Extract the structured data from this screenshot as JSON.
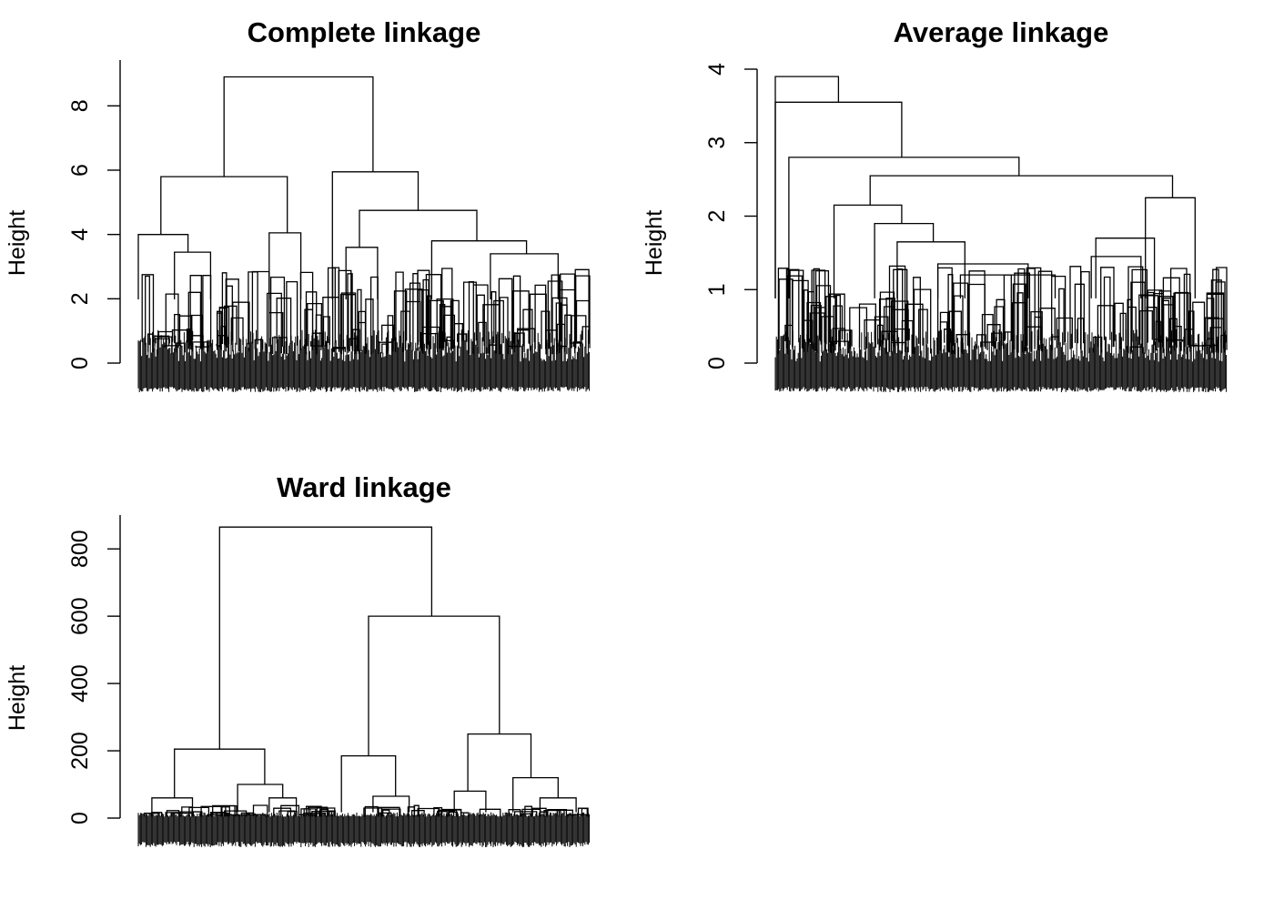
{
  "chart_data": [
    {
      "type": "dendrogram",
      "title": "Complete linkage",
      "ylabel": "Height",
      "ylim": [
        0,
        9
      ],
      "yticks": [
        0,
        2,
        4,
        6,
        8
      ],
      "grid": false,
      "merges": [
        {
          "h": 8.9,
          "x": [
            0.19,
            0.52
          ]
        },
        {
          "h": 5.8,
          "x": [
            0.05,
            0.33
          ]
        },
        {
          "h": 5.95,
          "x": [
            0.43,
            0.62
          ]
        },
        {
          "h": 4.0,
          "x": [
            0.0,
            0.11
          ]
        },
        {
          "h": 4.05,
          "x": [
            0.29,
            0.36
          ]
        },
        {
          "h": 4.75,
          "x": [
            0.49,
            0.75
          ]
        },
        {
          "h": 3.8,
          "x": [
            0.65,
            0.86
          ]
        },
        {
          "h": 3.6,
          "x": [
            0.46,
            0.53
          ]
        },
        {
          "h": 3.45,
          "x": [
            0.08,
            0.16
          ]
        },
        {
          "h": 3.4,
          "x": [
            0.78,
            0.93
          ]
        }
      ]
    },
    {
      "type": "dendrogram",
      "title": "Average linkage",
      "ylabel": "Height",
      "ylim": [
        0,
        4
      ],
      "yticks": [
        0,
        1,
        2,
        3,
        4
      ],
      "grid": false,
      "merges": [
        {
          "h": 3.9,
          "x": [
            0.0,
            0.14
          ]
        },
        {
          "h": 3.55,
          "x": [
            0.0,
            0.28
          ]
        },
        {
          "h": 2.8,
          "x": [
            0.03,
            0.54
          ]
        },
        {
          "h": 2.55,
          "x": [
            0.21,
            0.88
          ]
        },
        {
          "h": 2.15,
          "x": [
            0.13,
            0.28
          ]
        },
        {
          "h": 2.25,
          "x": [
            0.82,
            0.93
          ]
        },
        {
          "h": 1.9,
          "x": [
            0.22,
            0.35
          ]
        },
        {
          "h": 1.7,
          "x": [
            0.71,
            0.84
          ]
        },
        {
          "h": 1.65,
          "x": [
            0.27,
            0.42
          ]
        },
        {
          "h": 1.45,
          "x": [
            0.7,
            0.81
          ]
        },
        {
          "h": 1.35,
          "x": [
            0.36,
            0.56
          ]
        },
        {
          "h": 1.2,
          "x": [
            0.41,
            0.62
          ]
        }
      ]
    },
    {
      "type": "dendrogram",
      "title": "Ward linkage",
      "ylabel": "Height",
      "ylim": [
        0,
        860
      ],
      "yticks": [
        0,
        200,
        400,
        600,
        800
      ],
      "grid": false,
      "merges": [
        {
          "h": 865,
          "x": [
            0.18,
            0.65
          ]
        },
        {
          "h": 600,
          "x": [
            0.51,
            0.8
          ]
        },
        {
          "h": 205,
          "x": [
            0.08,
            0.28
          ]
        },
        {
          "h": 250,
          "x": [
            0.73,
            0.87
          ]
        },
        {
          "h": 185,
          "x": [
            0.45,
            0.57
          ]
        },
        {
          "h": 120,
          "x": [
            0.83,
            0.93
          ]
        },
        {
          "h": 100,
          "x": [
            0.22,
            0.32
          ]
        },
        {
          "h": 80,
          "x": [
            0.7,
            0.77
          ]
        },
        {
          "h": 65,
          "x": [
            0.52,
            0.6
          ]
        },
        {
          "h": 60,
          "x": [
            0.03,
            0.12
          ]
        },
        {
          "h": 60,
          "x": [
            0.29,
            0.35
          ]
        },
        {
          "h": 60,
          "x": [
            0.89,
            0.97
          ]
        }
      ]
    }
  ]
}
